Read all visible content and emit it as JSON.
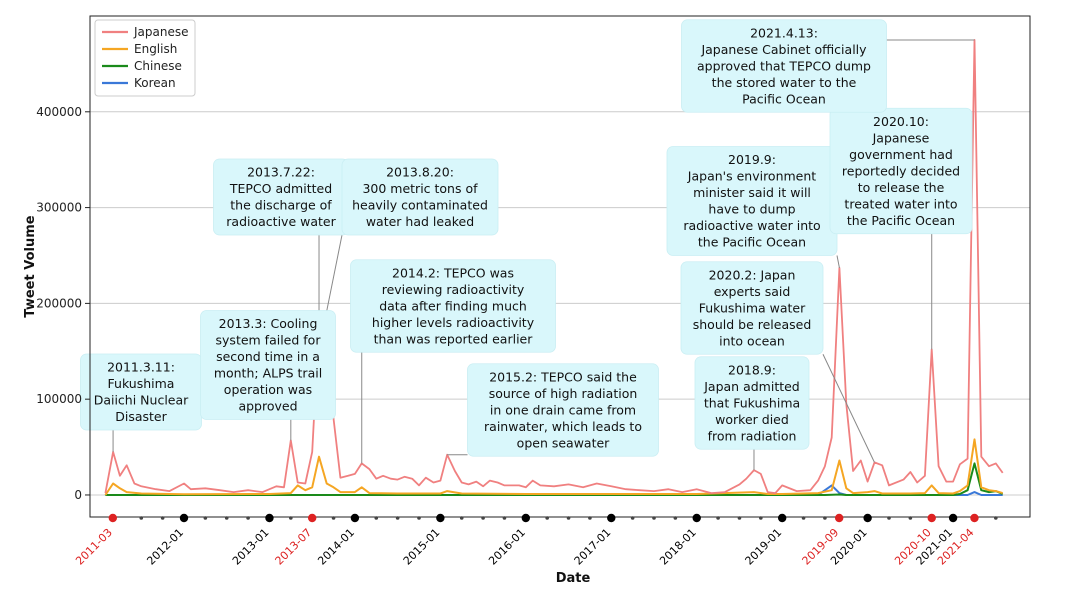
{
  "chart_data": {
    "type": "line",
    "xlabel": "Date",
    "ylabel": "Tweet Volume",
    "ylim": [
      -23000,
      500000
    ],
    "yticks": [
      0,
      100000,
      200000,
      300000,
      400000
    ],
    "ytick_labels": [
      "0",
      "100000",
      "200000",
      "300000",
      "400000"
    ],
    "xlim": [
      2010.9,
      2021.9
    ],
    "xticks": [
      {
        "t": 2011.167,
        "label": "2011-03",
        "highlight": true
      },
      {
        "t": 2012.0,
        "label": "2012-01",
        "highlight": false
      },
      {
        "t": 2013.0,
        "label": "2013-01",
        "highlight": false
      },
      {
        "t": 2013.5,
        "label": "2013-07",
        "highlight": true
      },
      {
        "t": 2014.0,
        "label": "2014-01",
        "highlight": false
      },
      {
        "t": 2015.0,
        "label": "2015-01",
        "highlight": false
      },
      {
        "t": 2016.0,
        "label": "2016-01",
        "highlight": false
      },
      {
        "t": 2017.0,
        "label": "2017-01",
        "highlight": false
      },
      {
        "t": 2018.0,
        "label": "2018-01",
        "highlight": false
      },
      {
        "t": 2019.0,
        "label": "2019-01",
        "highlight": false
      },
      {
        "t": 2019.667,
        "label": "2019-09",
        "highlight": true
      },
      {
        "t": 2020.0,
        "label": "2020-01",
        "highlight": false
      },
      {
        "t": 2020.75,
        "label": "2020-10",
        "highlight": true
      },
      {
        "t": 2021.0,
        "label": "2021-01",
        "highlight": false
      },
      {
        "t": 2021.25,
        "label": "2021-04",
        "highlight": true
      }
    ],
    "minor_ticks": [
      2011.5,
      2011.75,
      2012.25,
      2012.5,
      2012.75,
      2013.25,
      2013.75,
      2014.25,
      2014.5,
      2014.75,
      2015.25,
      2015.5,
      2015.75,
      2016.25,
      2016.5,
      2016.75,
      2017.25,
      2017.5,
      2017.75,
      2018.25,
      2018.5,
      2018.75,
      2019.25,
      2019.5,
      2020.25,
      2020.5,
      2021.5
    ],
    "grid": "horizontal",
    "legend_position": "top-left",
    "colors": {
      "Japanese": "#f08080",
      "English": "#f5a623",
      "Chinese": "#1a8a1a",
      "Korean": "#3a78d8",
      "highlight_tick": "#dd2222",
      "annotation_bg": "#d9f7fb",
      "grid": "#cccccc"
    },
    "series": [
      {
        "name": "Japanese",
        "points": [
          [
            2011.08,
            2000
          ],
          [
            2011.17,
            45000
          ],
          [
            2011.25,
            20000
          ],
          [
            2011.33,
            31000
          ],
          [
            2011.42,
            12000
          ],
          [
            2011.5,
            9000
          ],
          [
            2011.67,
            6000
          ],
          [
            2011.83,
            4000
          ],
          [
            2012.0,
            12000
          ],
          [
            2012.08,
            6000
          ],
          [
            2012.25,
            7000
          ],
          [
            2012.42,
            5000
          ],
          [
            2012.58,
            3000
          ],
          [
            2012.75,
            5000
          ],
          [
            2012.92,
            3000
          ],
          [
            2013.08,
            9000
          ],
          [
            2013.17,
            8000
          ],
          [
            2013.25,
            57000
          ],
          [
            2013.33,
            13000
          ],
          [
            2013.42,
            12000
          ],
          [
            2013.5,
            45000
          ],
          [
            2013.58,
            180000
          ],
          [
            2013.67,
            192000
          ],
          [
            2013.75,
            80000
          ],
          [
            2013.83,
            18000
          ],
          [
            2013.92,
            20000
          ],
          [
            2014.0,
            22000
          ],
          [
            2014.08,
            33000
          ],
          [
            2014.17,
            27000
          ],
          [
            2014.25,
            17000
          ],
          [
            2014.33,
            20000
          ],
          [
            2014.42,
            17000
          ],
          [
            2014.5,
            16000
          ],
          [
            2014.58,
            19000
          ],
          [
            2014.67,
            17000
          ],
          [
            2014.75,
            10000
          ],
          [
            2014.83,
            18000
          ],
          [
            2014.92,
            13000
          ],
          [
            2015.0,
            15000
          ],
          [
            2015.08,
            42000
          ],
          [
            2015.17,
            25000
          ],
          [
            2015.25,
            13000
          ],
          [
            2015.33,
            11000
          ],
          [
            2015.42,
            14000
          ],
          [
            2015.5,
            9000
          ],
          [
            2015.58,
            15000
          ],
          [
            2015.67,
            13000
          ],
          [
            2015.75,
            10000
          ],
          [
            2015.92,
            10000
          ],
          [
            2016.0,
            8000
          ],
          [
            2016.08,
            15000
          ],
          [
            2016.17,
            10000
          ],
          [
            2016.33,
            9000
          ],
          [
            2016.5,
            11000
          ],
          [
            2016.67,
            8000
          ],
          [
            2016.83,
            12000
          ],
          [
            2017.0,
            9000
          ],
          [
            2017.17,
            6000
          ],
          [
            2017.33,
            5000
          ],
          [
            2017.5,
            4000
          ],
          [
            2017.67,
            6000
          ],
          [
            2017.83,
            3000
          ],
          [
            2018.0,
            6000
          ],
          [
            2018.17,
            2000
          ],
          [
            2018.33,
            3000
          ],
          [
            2018.5,
            11000
          ],
          [
            2018.58,
            17000
          ],
          [
            2018.67,
            26000
          ],
          [
            2018.75,
            22000
          ],
          [
            2018.83,
            3000
          ],
          [
            2018.92,
            2000
          ],
          [
            2019.0,
            10000
          ],
          [
            2019.17,
            4000
          ],
          [
            2019.33,
            5000
          ],
          [
            2019.42,
            15000
          ],
          [
            2019.5,
            30000
          ],
          [
            2019.58,
            60000
          ],
          [
            2019.67,
            237000
          ],
          [
            2019.75,
            95000
          ],
          [
            2019.83,
            25000
          ],
          [
            2019.92,
            36000
          ],
          [
            2020.0,
            14000
          ],
          [
            2020.08,
            34000
          ],
          [
            2020.17,
            31000
          ],
          [
            2020.25,
            10000
          ],
          [
            2020.42,
            16000
          ],
          [
            2020.5,
            24000
          ],
          [
            2020.58,
            13000
          ],
          [
            2020.67,
            20000
          ],
          [
            2020.75,
            152000
          ],
          [
            2020.83,
            30000
          ],
          [
            2020.92,
            14000
          ],
          [
            2021.0,
            14000
          ],
          [
            2021.08,
            32000
          ],
          [
            2021.17,
            38000
          ],
          [
            2021.25,
            475000
          ],
          [
            2021.33,
            40000
          ],
          [
            2021.42,
            30000
          ],
          [
            2021.5,
            33000
          ],
          [
            2021.58,
            23000
          ]
        ]
      },
      {
        "name": "English",
        "points": [
          [
            2011.08,
            0
          ],
          [
            2011.17,
            12000
          ],
          [
            2011.25,
            7000
          ],
          [
            2011.33,
            3000
          ],
          [
            2011.5,
            1500
          ],
          [
            2012.0,
            800
          ],
          [
            2013.0,
            1000
          ],
          [
            2013.25,
            2000
          ],
          [
            2013.33,
            10000
          ],
          [
            2013.42,
            5000
          ],
          [
            2013.5,
            8000
          ],
          [
            2013.58,
            40000
          ],
          [
            2013.67,
            12000
          ],
          [
            2013.75,
            8000
          ],
          [
            2013.83,
            3000
          ],
          [
            2014.0,
            3000
          ],
          [
            2014.08,
            8000
          ],
          [
            2014.17,
            2000
          ],
          [
            2014.5,
            1500
          ],
          [
            2015.0,
            1500
          ],
          [
            2015.08,
            4000
          ],
          [
            2015.25,
            1500
          ],
          [
            2016.0,
            1000
          ],
          [
            2017.0,
            1000
          ],
          [
            2018.0,
            1000
          ],
          [
            2018.67,
            3000
          ],
          [
            2018.83,
            1000
          ],
          [
            2019.0,
            1000
          ],
          [
            2019.42,
            2000
          ],
          [
            2019.58,
            5000
          ],
          [
            2019.67,
            36000
          ],
          [
            2019.75,
            7000
          ],
          [
            2019.83,
            2000
          ],
          [
            2020.0,
            3000
          ],
          [
            2020.08,
            4000
          ],
          [
            2020.17,
            1500
          ],
          [
            2020.5,
            1500
          ],
          [
            2020.67,
            2000
          ],
          [
            2020.75,
            10000
          ],
          [
            2020.83,
            2000
          ],
          [
            2021.0,
            1500
          ],
          [
            2021.08,
            4000
          ],
          [
            2021.17,
            10000
          ],
          [
            2021.25,
            58000
          ],
          [
            2021.33,
            8000
          ],
          [
            2021.42,
            5000
          ],
          [
            2021.5,
            4000
          ],
          [
            2021.58,
            2000
          ]
        ]
      },
      {
        "name": "Chinese",
        "points": [
          [
            2011.08,
            0
          ],
          [
            2019.5,
            0
          ],
          [
            2019.67,
            500
          ],
          [
            2019.75,
            0
          ],
          [
            2021.0,
            0
          ],
          [
            2021.08,
            1000
          ],
          [
            2021.17,
            5000
          ],
          [
            2021.25,
            33000
          ],
          [
            2021.33,
            5000
          ],
          [
            2021.42,
            3000
          ],
          [
            2021.5,
            4000
          ],
          [
            2021.58,
            1000
          ]
        ]
      },
      {
        "name": "Korean",
        "points": [
          [
            2011.08,
            0
          ],
          [
            2019.42,
            0
          ],
          [
            2019.58,
            10000
          ],
          [
            2019.67,
            2000
          ],
          [
            2019.75,
            0
          ],
          [
            2021.17,
            0
          ],
          [
            2021.25,
            3000
          ],
          [
            2021.33,
            0
          ],
          [
            2021.58,
            0
          ]
        ]
      }
    ],
    "annotations": [
      {
        "lines": [
          "2011.3.11:",
          "Fukushima",
          "Daiichi Nuclear",
          "Disaster"
        ],
        "target": [
          2011.17,
          45000
        ]
      },
      {
        "lines": [
          "2013.3: Cooling",
          "system failed for",
          "second time in a",
          "month; ALPS trail",
          "operation was",
          "approved"
        ],
        "target": [
          2013.25,
          57000
        ]
      },
      {
        "lines": [
          "2013.7.22:",
          "TEPCO admitted",
          "the discharge of",
          "radioactive water"
        ],
        "target": [
          2013.58,
          180000
        ]
      },
      {
        "lines": [
          "2013.8.20:",
          "300 metric tons of",
          "heavily contaminated",
          "water had leaked"
        ],
        "target": [
          2013.67,
          192000
        ]
      },
      {
        "lines": [
          "2014.2: TEPCO was",
          "reviewing radioactivity",
          "data after finding much",
          "higher levels radioactivity",
          "than was reported earlier"
        ],
        "target": [
          2014.08,
          33000
        ]
      },
      {
        "lines": [
          "2015.2: TEPCO said the",
          "source of high radiation",
          "in one drain came from",
          "rainwater, which leads to",
          "open seawater"
        ],
        "target": [
          2015.08,
          42000
        ]
      },
      {
        "lines": [
          "2018.9:",
          "Japan admitted",
          "that Fukushima",
          "worker died",
          "from radiation"
        ],
        "target": [
          2018.67,
          26000
        ]
      },
      {
        "lines": [
          "2019.9:",
          "Japan's environment",
          "minister said it will",
          "have to dump",
          "radioactive water into",
          "the Pacific Ocean"
        ],
        "target": [
          2019.67,
          237000
        ]
      },
      {
        "lines": [
          "2020.2: Japan",
          "experts said",
          "Fukushima water",
          "should be released",
          "into ocean"
        ],
        "target": [
          2020.08,
          34000
        ]
      },
      {
        "lines": [
          "2020.10:",
          "Japanese",
          "government had",
          "reportedly decided",
          "to release the",
          "treated water into",
          "the Pacific Ocean"
        ],
        "target": [
          2020.75,
          152000
        ]
      },
      {
        "lines": [
          "2021.4.13:",
          "Japanese Cabinet officially",
          "approved that TEPCO dump",
          "the stored water to the",
          "Pacific Ocean"
        ],
        "target": [
          2021.25,
          475000
        ]
      }
    ]
  }
}
